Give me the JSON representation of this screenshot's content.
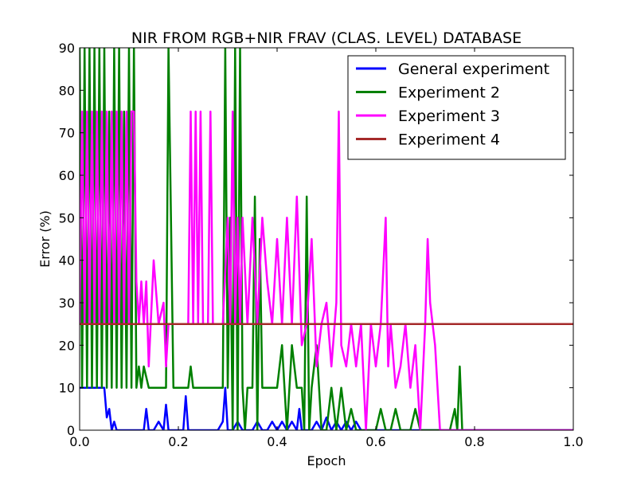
{
  "chart_data": {
    "type": "line",
    "title": "NIR FROM RGB+NIR FRAV (CLAS. LEVEL) DATABASE",
    "xlabel": "Epoch",
    "ylabel": "Error (%)",
    "xlim": [
      0.0,
      1.0
    ],
    "ylim": [
      0,
      90
    ],
    "xticks": [
      0.0,
      0.2,
      0.4,
      0.6,
      0.8,
      1.0
    ],
    "xtick_labels": [
      "0.0",
      "0.2",
      "0.4",
      "0.6",
      "0.8",
      "1.0"
    ],
    "yticks": [
      0,
      10,
      20,
      30,
      40,
      50,
      60,
      70,
      80,
      90
    ],
    "ytick_labels": [
      "0",
      "10",
      "20",
      "30",
      "40",
      "50",
      "60",
      "70",
      "80",
      "90"
    ],
    "grid": false,
    "legend_position": "top-right",
    "series": [
      {
        "name": "General experiment",
        "color": "#0000ff",
        "x": [
          0.0,
          0.005,
          0.01,
          0.02,
          0.03,
          0.04,
          0.045,
          0.05,
          0.055,
          0.06,
          0.065,
          0.07,
          0.075,
          0.08,
          0.09,
          0.1,
          0.11,
          0.12,
          0.13,
          0.135,
          0.14,
          0.15,
          0.16,
          0.17,
          0.175,
          0.18,
          0.19,
          0.2,
          0.21,
          0.215,
          0.22,
          0.225,
          0.23,
          0.25,
          0.27,
          0.28,
          0.29,
          0.295,
          0.3,
          0.31,
          0.32,
          0.33,
          0.34,
          0.35,
          0.36,
          0.37,
          0.38,
          0.39,
          0.4,
          0.41,
          0.42,
          0.43,
          0.44,
          0.445,
          0.45,
          0.46,
          0.47,
          0.48,
          0.49,
          0.5,
          0.51,
          0.52,
          0.53,
          0.54,
          0.55,
          0.56,
          0.57,
          0.58,
          0.6,
          0.65,
          0.7,
          0.8,
          0.9,
          1.0
        ],
        "y": [
          10,
          10,
          10,
          10,
          10,
          10,
          10,
          10,
          3,
          5,
          0,
          2,
          0,
          0,
          0,
          0,
          0,
          0,
          0,
          5,
          0,
          0,
          2,
          0,
          6,
          0,
          0,
          0,
          0,
          8,
          0,
          0,
          0,
          0,
          0,
          0,
          2,
          10,
          0,
          0,
          2,
          0,
          0,
          0,
          2,
          0,
          0,
          2,
          0,
          2,
          0,
          2,
          0,
          5,
          0,
          0,
          0,
          2,
          0,
          3,
          0,
          2,
          0,
          2,
          0,
          2,
          0,
          0,
          0,
          0,
          0,
          0,
          0,
          0
        ]
      },
      {
        "name": "Experiment 2",
        "color": "#008000",
        "x": [
          0.0,
          0.005,
          0.01,
          0.015,
          0.02,
          0.025,
          0.03,
          0.035,
          0.04,
          0.045,
          0.05,
          0.055,
          0.06,
          0.065,
          0.07,
          0.075,
          0.08,
          0.085,
          0.09,
          0.095,
          0.1,
          0.105,
          0.11,
          0.115,
          0.12,
          0.125,
          0.13,
          0.14,
          0.15,
          0.16,
          0.17,
          0.175,
          0.18,
          0.19,
          0.2,
          0.21,
          0.22,
          0.225,
          0.23,
          0.24,
          0.25,
          0.26,
          0.27,
          0.28,
          0.29,
          0.295,
          0.3,
          0.305,
          0.31,
          0.315,
          0.32,
          0.325,
          0.33,
          0.335,
          0.34,
          0.345,
          0.35,
          0.355,
          0.36,
          0.365,
          0.37,
          0.38,
          0.39,
          0.4,
          0.41,
          0.42,
          0.43,
          0.44,
          0.45,
          0.455,
          0.46,
          0.465,
          0.47,
          0.48,
          0.49,
          0.5,
          0.51,
          0.52,
          0.53,
          0.54,
          0.55,
          0.56,
          0.57,
          0.58,
          0.59,
          0.6,
          0.61,
          0.62,
          0.63,
          0.64,
          0.65,
          0.66,
          0.67,
          0.68,
          0.69,
          0.7,
          0.71,
          0.72,
          0.73,
          0.74,
          0.75,
          0.76,
          0.765,
          0.77,
          0.775,
          0.78,
          0.8,
          0.9,
          1.0
        ],
        "y": [
          90,
          10,
          90,
          10,
          90,
          10,
          90,
          10,
          90,
          10,
          90,
          10,
          75,
          10,
          90,
          10,
          90,
          10,
          75,
          10,
          90,
          10,
          90,
          10,
          15,
          10,
          15,
          10,
          10,
          10,
          10,
          10,
          90,
          10,
          10,
          10,
          10,
          15,
          10,
          10,
          10,
          10,
          10,
          10,
          10,
          90,
          10,
          50,
          0,
          90,
          0,
          90,
          10,
          0,
          10,
          10,
          10,
          55,
          0,
          45,
          10,
          10,
          10,
          10,
          20,
          0,
          20,
          10,
          10,
          0,
          55,
          0,
          10,
          20,
          0,
          0,
          10,
          0,
          10,
          0,
          5,
          0,
          0,
          0,
          0,
          0,
          5,
          0,
          0,
          5,
          0,
          0,
          0,
          5,
          0,
          0,
          0,
          0,
          0,
          0,
          0,
          5,
          0,
          15,
          0,
          0,
          0,
          0,
          0
        ]
      },
      {
        "name": "Experiment 3",
        "color": "#ff00ff",
        "x": [
          0.0,
          0.005,
          0.01,
          0.015,
          0.02,
          0.025,
          0.03,
          0.035,
          0.04,
          0.045,
          0.05,
          0.055,
          0.06,
          0.065,
          0.07,
          0.075,
          0.08,
          0.085,
          0.09,
          0.095,
          0.1,
          0.105,
          0.11,
          0.115,
          0.12,
          0.125,
          0.13,
          0.135,
          0.14,
          0.15,
          0.16,
          0.17,
          0.175,
          0.18,
          0.19,
          0.2,
          0.21,
          0.22,
          0.225,
          0.23,
          0.235,
          0.24,
          0.245,
          0.25,
          0.26,
          0.265,
          0.27,
          0.28,
          0.29,
          0.3,
          0.305,
          0.31,
          0.315,
          0.32,
          0.325,
          0.33,
          0.34,
          0.35,
          0.36,
          0.37,
          0.38,
          0.39,
          0.4,
          0.41,
          0.42,
          0.43,
          0.44,
          0.45,
          0.46,
          0.47,
          0.48,
          0.49,
          0.5,
          0.51,
          0.52,
          0.525,
          0.53,
          0.54,
          0.55,
          0.56,
          0.57,
          0.58,
          0.59,
          0.6,
          0.61,
          0.62,
          0.625,
          0.63,
          0.64,
          0.65,
          0.66,
          0.67,
          0.68,
          0.69,
          0.7,
          0.705,
          0.71,
          0.72,
          0.73,
          0.74,
          0.75,
          0.76,
          0.77,
          0.78,
          0.8,
          0.9,
          1.0
        ],
        "y": [
          25,
          75,
          25,
          75,
          25,
          75,
          25,
          75,
          25,
          75,
          25,
          75,
          25,
          75,
          25,
          75,
          25,
          75,
          25,
          75,
          25,
          75,
          75,
          35,
          25,
          35,
          25,
          35,
          15,
          40,
          25,
          30,
          15,
          25,
          25,
          25,
          25,
          25,
          75,
          25,
          75,
          25,
          75,
          25,
          25,
          75,
          25,
          25,
          25,
          50,
          25,
          75,
          25,
          50,
          25,
          50,
          25,
          50,
          25,
          50,
          35,
          25,
          45,
          25,
          50,
          25,
          55,
          20,
          25,
          45,
          15,
          25,
          30,
          15,
          30,
          75,
          20,
          15,
          25,
          15,
          25,
          0,
          25,
          15,
          25,
          50,
          15,
          25,
          10,
          15,
          25,
          10,
          20,
          0,
          25,
          45,
          30,
          20,
          0,
          0,
          0,
          0,
          0,
          0,
          0,
          0,
          0
        ]
      },
      {
        "name": "Experiment 4",
        "color": "#a52a2a",
        "x": [
          0.0,
          1.0
        ],
        "y": [
          25,
          25
        ]
      }
    ]
  }
}
